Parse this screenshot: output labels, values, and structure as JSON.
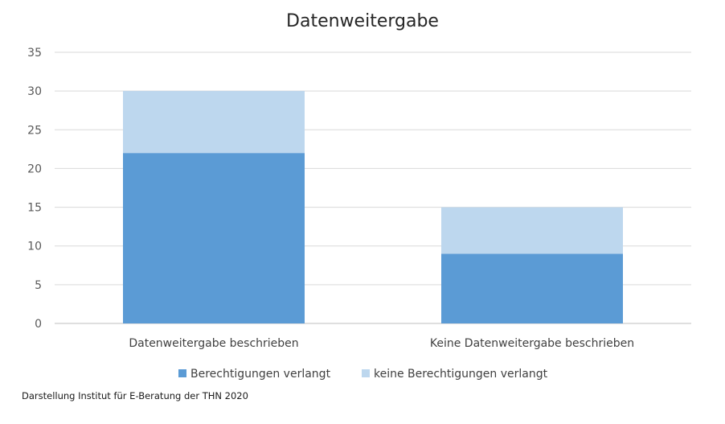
{
  "chart_data": {
    "type": "bar",
    "stacked": true,
    "title": "Datenweitergabe",
    "xlabel": "",
    "ylabel": "",
    "ylim": [
      0,
      35
    ],
    "yticks": [
      0,
      5,
      10,
      15,
      20,
      25,
      30,
      35
    ],
    "grid": true,
    "legend_position": "bottom",
    "categories": [
      "Datenweitergabe beschrieben",
      "Keine Datenweitergabe beschrieben"
    ],
    "series": [
      {
        "name": "Berechtigungen verlangt",
        "values": [
          22,
          9
        ],
        "color": "#5b9bd5"
      },
      {
        "name": "keine Berechtigungen verlangt",
        "values": [
          8,
          6
        ],
        "color": "#bdd7ee"
      }
    ]
  },
  "source_note": "Darstellung Institut für E-Beratung der THN 2020"
}
